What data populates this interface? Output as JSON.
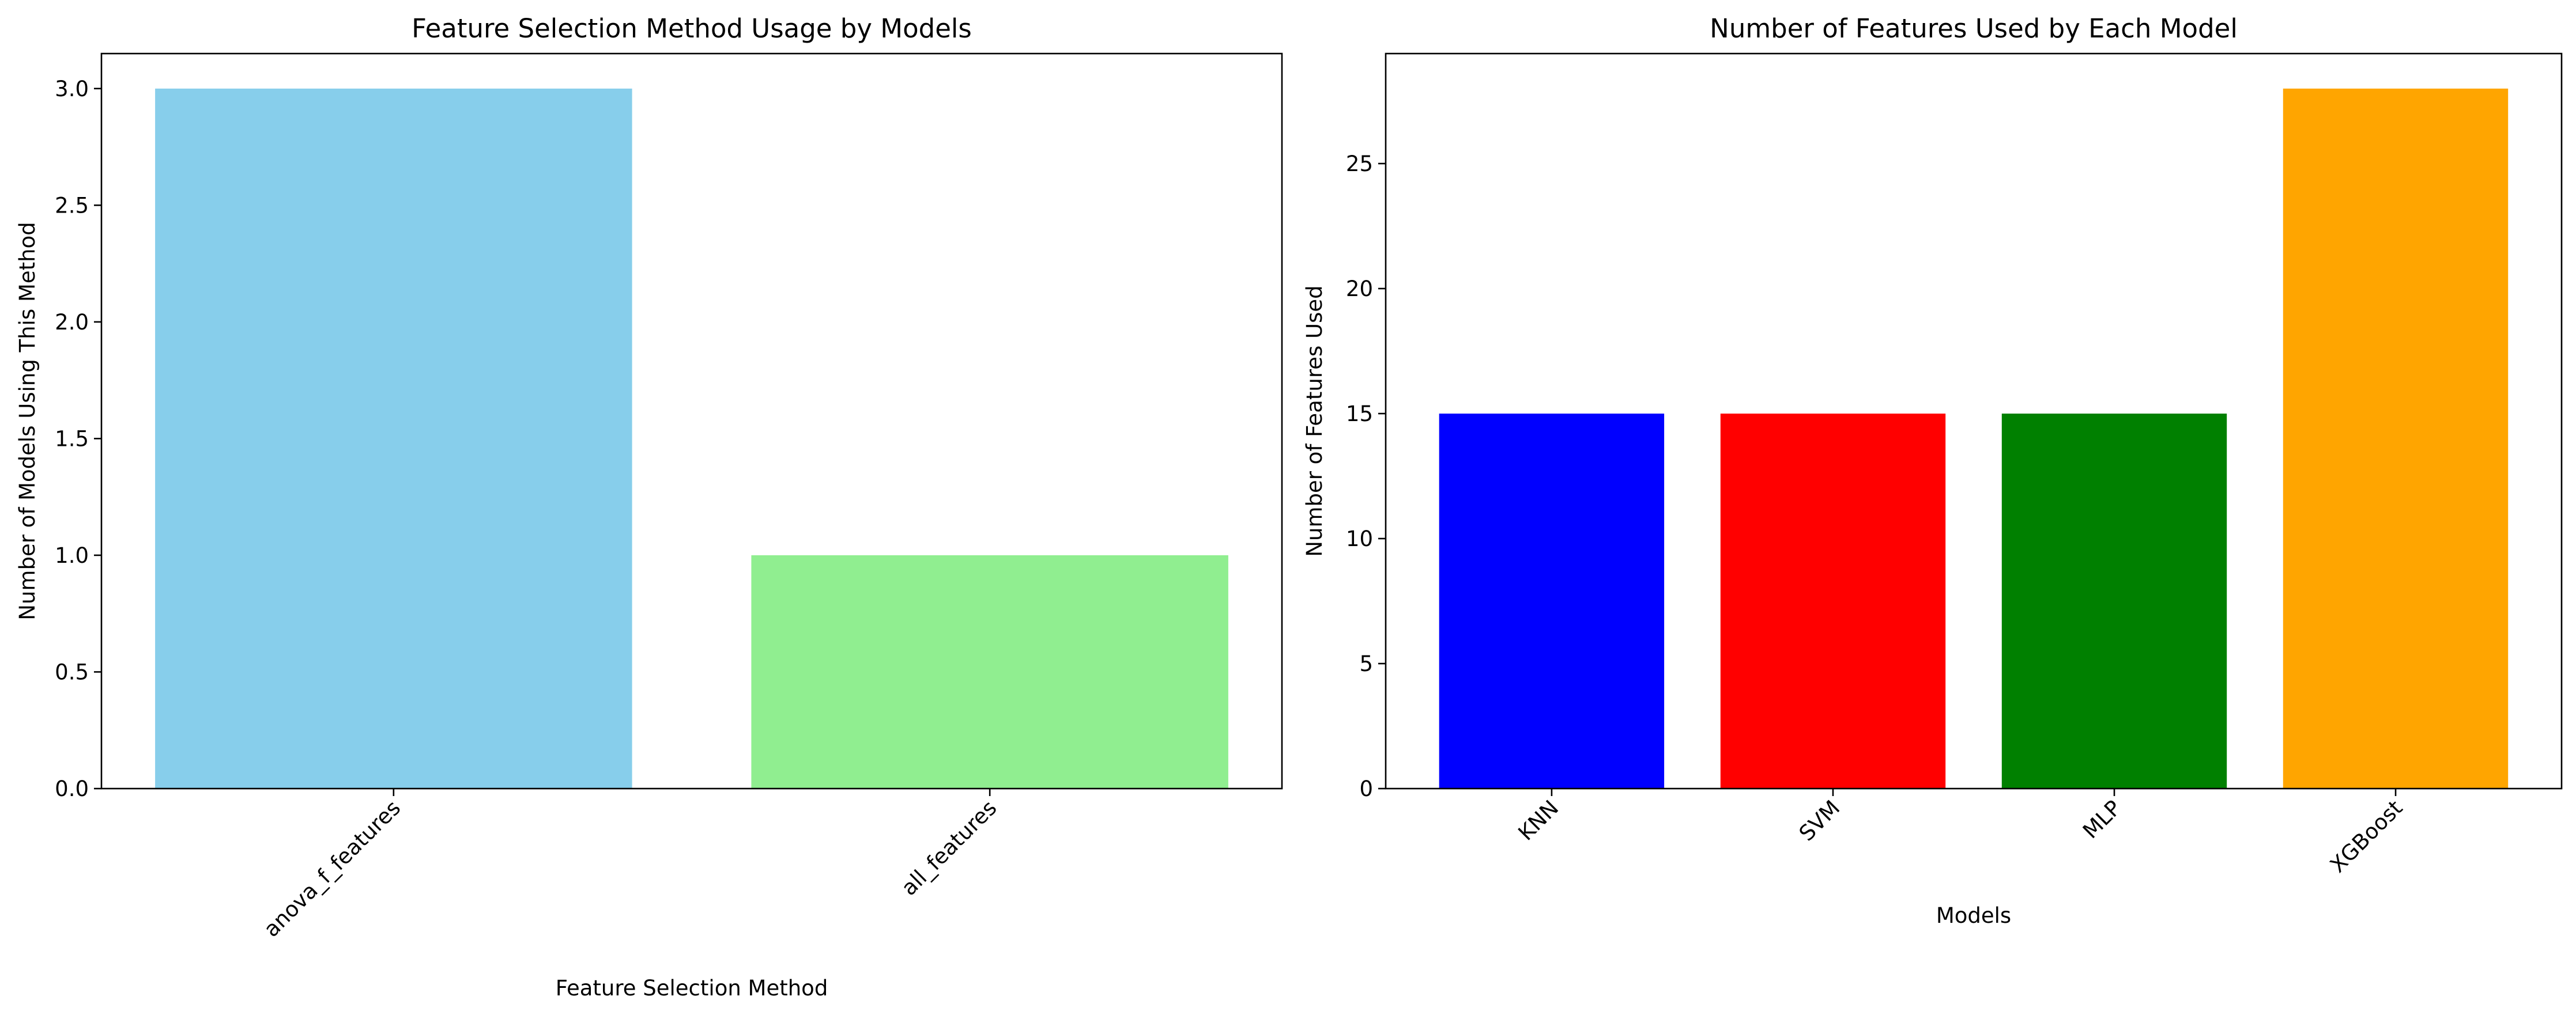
{
  "chart_data": [
    {
      "type": "bar",
      "title": "Feature Selection Method Usage by Models",
      "xlabel": "Feature Selection Method",
      "ylabel": "Number of Models Using This Method",
      "categories": [
        "anova_f_features",
        "all_features"
      ],
      "values": [
        3,
        1
      ],
      "colors": [
        "#87CEEB",
        "#90EE90"
      ],
      "ylim": [
        0,
        3.15
      ],
      "yticks": [
        0,
        0.5,
        1,
        1.5,
        2,
        2.5,
        3
      ],
      "ytick_labels": [
        "0.0",
        "0.5",
        "1.0",
        "1.5",
        "2.0",
        "2.5",
        "3.0"
      ],
      "grid": false,
      "xtick_rotation": 45
    },
    {
      "type": "bar",
      "title": "Number of Features Used by Each Model",
      "xlabel": "Models",
      "ylabel": "Number of Features Used",
      "categories": [
        "KNN",
        "SVM",
        "MLP",
        "XGBoost"
      ],
      "values": [
        15,
        15,
        15,
        28
      ],
      "colors": [
        "#0000FF",
        "#FF0000",
        "#008000",
        "#FFA500"
      ],
      "ylim": [
        0,
        29.4
      ],
      "yticks": [
        0,
        5,
        10,
        15,
        20,
        25
      ],
      "ytick_labels": [
        "0",
        "5",
        "10",
        "15",
        "20",
        "25"
      ],
      "grid": false,
      "xtick_rotation": 45
    }
  ]
}
